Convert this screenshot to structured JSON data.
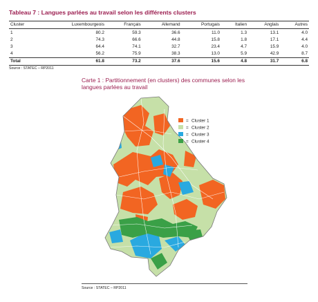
{
  "table": {
    "title": "Tableau 7 : Langues parlées au travail selon les différents clusters",
    "headers": [
      "Cluster",
      "Luxembourgeois",
      "Français",
      "Allemand",
      "Portugais",
      "Italien",
      "Anglais",
      "Autres"
    ],
    "rows": [
      [
        "1",
        "80.2",
        "59.3",
        "36.6",
        "11.0",
        "1.3",
        "13.1",
        "4.0"
      ],
      [
        "2",
        "74.3",
        "66.6",
        "44.8",
        "15.8",
        "1.8",
        "17.1",
        "4.4"
      ],
      [
        "3",
        "64.4",
        "74.1",
        "32.7",
        "23.4",
        "4.7",
        "15.9",
        "4.0"
      ],
      [
        "4",
        "56.2",
        "75.9",
        "38.3",
        "13.0",
        "5.9",
        "42.9",
        "8.7"
      ]
    ],
    "total": [
      "Total",
      "61.8",
      "73.2",
      "37.6",
      "15.6",
      "4.8",
      "31.7",
      "6.8"
    ],
    "source": "Source : STATEC – RP2011"
  },
  "map": {
    "title": "Carte 1 : Partitionnement (en clusters) des communes selon les langues parlées au travail",
    "source": "Source : STATEC – RP2011",
    "legend": [
      {
        "symbol": "=",
        "label": "Cluster 1",
        "color": "#f26522"
      },
      {
        "symbol": "=",
        "label": "Cluster 2",
        "color": "#c6e0a8"
      },
      {
        "symbol": "=",
        "label": "Cluster 3",
        "color": "#29a9e0"
      },
      {
        "symbol": "=",
        "label": "Cluster 4",
        "color": "#3aa047"
      }
    ]
  }
}
